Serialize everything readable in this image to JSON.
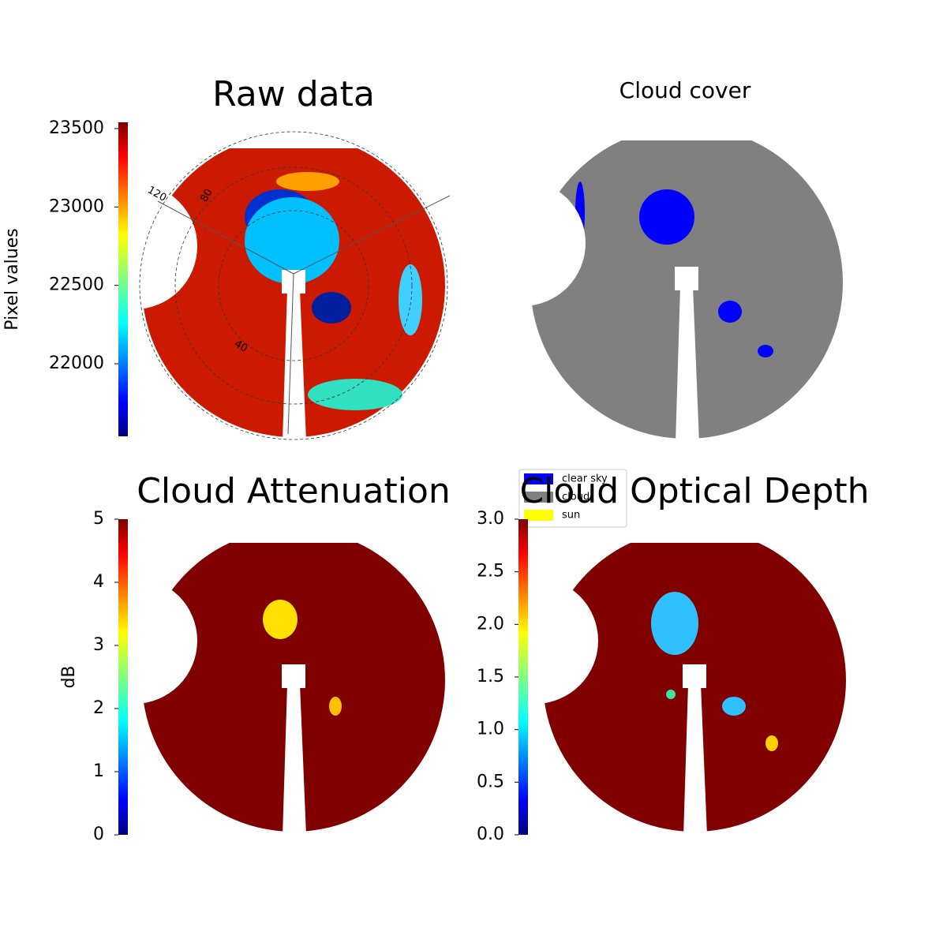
{
  "chart_data": [
    {
      "type": "image",
      "title": "Raw data",
      "colormap": "jet",
      "colorbar_label": "Pixel values",
      "clim": [
        21537,
        23540
      ],
      "cticks": [
        22000,
        22500,
        23000,
        23500
      ],
      "polar_labels": [
        "120",
        "80",
        "40"
      ]
    },
    {
      "type": "image",
      "title": "Cloud cover",
      "legend": [
        {
          "name": "clear sky",
          "color": "#0000ff"
        },
        {
          "name": "cloud",
          "color": "#808080"
        },
        {
          "name": "sun",
          "color": "#ffff00"
        }
      ]
    },
    {
      "type": "image",
      "title": "Cloud Attenuation",
      "colormap": "jet",
      "colorbar_label": "dB",
      "clim": [
        0,
        5
      ],
      "cticks": [
        0,
        1,
        2,
        3,
        4,
        5
      ]
    },
    {
      "type": "image",
      "title": "Cloud Optical Depth",
      "colormap": "jet",
      "clim": [
        0,
        3
      ],
      "cticks": [
        {
          "value": 0,
          "label": "0.0"
        },
        {
          "value": 0.5,
          "label": "0.5"
        },
        {
          "value": 1,
          "label": "1.0"
        },
        {
          "value": 1.5,
          "label": "1.5"
        },
        {
          "value": 2,
          "label": "2.0"
        },
        {
          "value": 2.5,
          "label": "2.5"
        },
        {
          "value": 3,
          "label": "3.0"
        }
      ]
    }
  ]
}
